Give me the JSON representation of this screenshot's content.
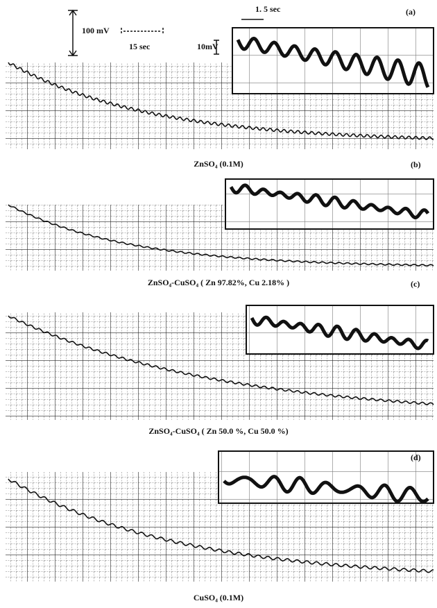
{
  "scale": {
    "time_main": "15 sec",
    "voltage_main": "100 mV",
    "time_inset": "1. 5 sec",
    "voltage_inset": "10mV"
  },
  "panels": [
    {
      "label": "(a)",
      "caption": "ZnSO₄ (0.1M)"
    },
    {
      "label": "(b)",
      "caption": "ZnSO₄-CuSO₄ ( Zn 97.82%, Cu 2.18% )"
    },
    {
      "label": "(c)",
      "caption": "ZnSO₄-CuSO₄ ( Zn 50.0 %, Cu 50.0 %)"
    },
    {
      "label": "(d)",
      "caption": "CuSO₄ (0.1M)"
    }
  ]
}
